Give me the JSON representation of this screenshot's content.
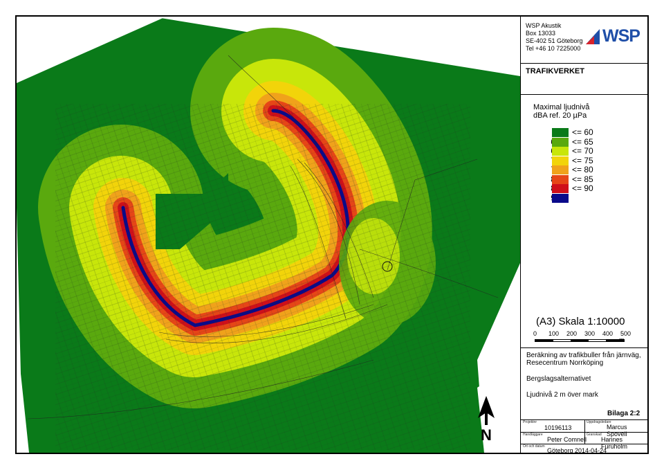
{
  "company": {
    "name": "WSP Akustik",
    "box": "Box 13033",
    "address": "SE-402 51 Göteborg",
    "phone": "Tel +46 10 7225000",
    "logo_text": "WSP"
  },
  "client": "TRAFIKVERKET",
  "legend": {
    "title_line1": "Maximal ljudnivå",
    "title_line2": "dBA ref. 20 µPa",
    "items": [
      {
        "low": "",
        "high": "<= 60",
        "color": "#0a7a19"
      },
      {
        "low": "60 <",
        "high": "<= 65",
        "color": "#5aa90e"
      },
      {
        "low": "65 <",
        "high": "<= 70",
        "color": "#c8e60a"
      },
      {
        "low": "70 <",
        "high": "<= 75",
        "color": "#f2d40a"
      },
      {
        "low": "75 <",
        "high": "<= 80",
        "color": "#f0a21b"
      },
      {
        "low": "80 <",
        "high": "<= 85",
        "color": "#e64617"
      },
      {
        "low": "85 <",
        "high": "<= 90",
        "color": "#cf0f1a"
      },
      {
        "low": "90 <",
        "high": "",
        "color": "#0a0a8a"
      }
    ]
  },
  "scale": {
    "label": "(A3) Skala 1:10000",
    "ticks": [
      "0",
      "100",
      "200",
      "300",
      "400",
      "500"
    ],
    "unit": "m"
  },
  "description": {
    "line1": "Beräkning av trafikbuller från järnväg,",
    "line2": "Resecentrum Norrköping",
    "alternative": "Bergslagsalternativet",
    "height": "Ljudnivå 2 m över mark"
  },
  "appendix": "Bilaga 2:2",
  "north_label": "N",
  "title_block": {
    "project_label": "Projektnr",
    "project": "10196113",
    "lead_label": "Uppdragsledare",
    "lead": "Marcus Spovell",
    "handler_label": "Handläggare",
    "handler": "Peter Comnell",
    "reviewer_label": "Granskad",
    "reviewer": "Hannes Furuholm",
    "place_label": "Ort och datum",
    "place_date": "Göteborg 2014-04-24"
  }
}
